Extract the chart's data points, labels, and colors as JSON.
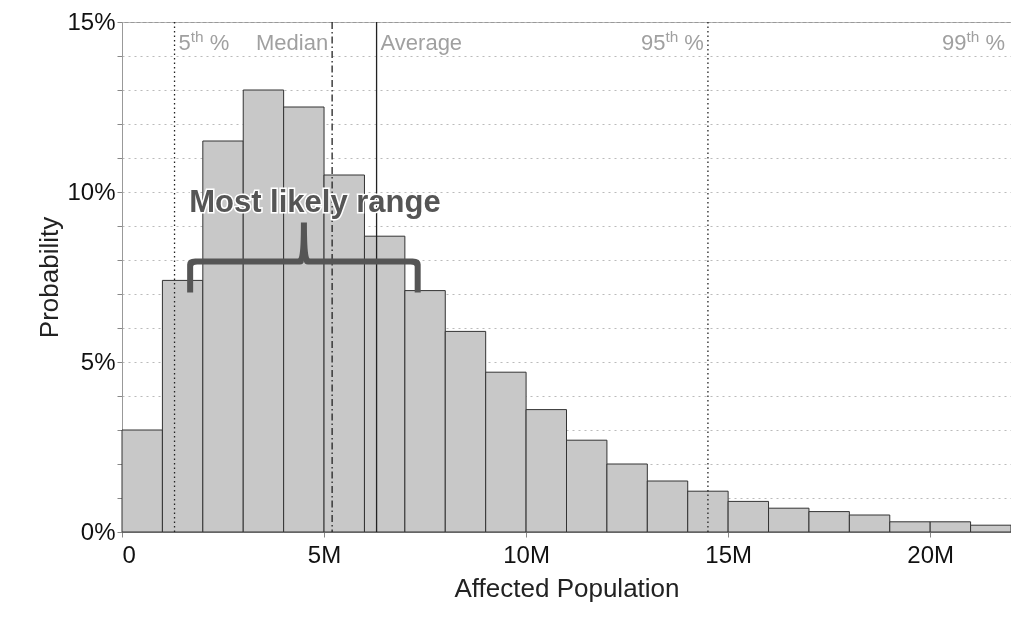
{
  "chart_data": {
    "type": "histogram",
    "xlabel": "Affected Population",
    "ylabel": "Probability",
    "color": "#c8c8c8",
    "bins": [
      0,
      1000000,
      2000000,
      3000000,
      4000000,
      5000000,
      6000000,
      7000000,
      8000000,
      9000000,
      10000000,
      11000000,
      12000000,
      13000000,
      14000000,
      15000000,
      16000000,
      17000000,
      18000000,
      19000000,
      20000000,
      21000000,
      22000000
    ],
    "values": [
      3.0,
      7.4,
      11.5,
      13.0,
      12.5,
      10.5,
      8.7,
      7.1,
      5.9,
      4.7,
      3.6,
      2.7,
      2.0,
      1.5,
      1.2,
      0.9,
      0.7,
      0.6,
      0.5,
      0.3,
      0.3,
      0.2
    ],
    "xlim": [
      0,
      22000000
    ],
    "xticks": [
      0,
      {
        "value": 5000000,
        "label": "5M"
      },
      {
        "value": 10000000,
        "label": "10M"
      },
      {
        "value": 15000000,
        "label": "15M"
      },
      {
        "value": 20000000,
        "label": "20M"
      }
    ],
    "ylim": [
      0,
      15
    ],
    "yticks": [
      {
        "value": 0,
        "label": "0%"
      },
      {
        "value": 1,
        "label": null
      },
      {
        "value": 2,
        "label": null
      },
      {
        "value": 3,
        "label": null
      },
      {
        "value": 4,
        "label": null
      },
      {
        "value": 5,
        "label": "5%"
      },
      {
        "value": 6,
        "label": null
      },
      {
        "value": 7,
        "label": null
      },
      {
        "value": 8,
        "label": null
      },
      {
        "value": 9,
        "label": null
      },
      {
        "value": 10,
        "label": "10%"
      },
      {
        "value": 11,
        "label": null
      },
      {
        "value": 12,
        "label": null
      },
      {
        "value": 13,
        "label": null
      },
      {
        "value": 14,
        "label": null
      },
      {
        "value": 15,
        "label": "15%"
      }
    ],
    "grid": "y",
    "ref_lines": [
      {
        "axis": "x",
        "value": 1300000,
        "label": "5$^{th}$ %",
        "line_style": "dotted"
      },
      {
        "axis": "x",
        "value": 5200000,
        "label": "Median",
        "line_style": "dashed"
      },
      {
        "axis": "x",
        "value": 6300000,
        "label": "Average",
        "line_style": "solid"
      },
      {
        "axis": "x",
        "value": 14500000,
        "label": "95$^{th}$ %",
        "line_style": "dotted"
      }
    ],
    "annotations": [
      "99$^{th}$ %",
      "Most likely range"
    ]
  }
}
